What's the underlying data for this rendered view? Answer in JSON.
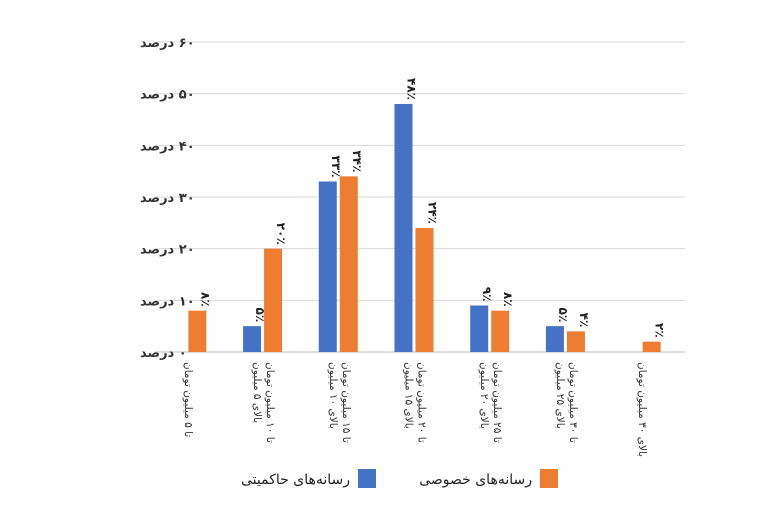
{
  "chart_data": {
    "type": "bar",
    "title": "",
    "xlabel": "",
    "ylabel": "",
    "ylim": [
      0,
      60
    ],
    "grid": true,
    "legend_placement": "bottom",
    "y_ticks": [
      0,
      10,
      20,
      30,
      40,
      50,
      60
    ],
    "y_tick_labels": [
      "۰ درصد",
      "۱۰ درصد",
      "۲۰ درصد",
      "۳۰ درصد",
      "۴۰ درصد",
      "۵۰ درصد",
      "۶۰ درصد"
    ],
    "categories": [
      [
        "تا ۵ میلیون تومان"
      ],
      [
        "بالای ۵ میلیون",
        "تا ۱۰ میلیون تومان"
      ],
      [
        "بالای ۱۰ میلیون",
        "تا ۱۵ میلیون تومان"
      ],
      [
        "بالای ۱۵ میلیون",
        "تا ۲۰ میلیون تومان"
      ],
      [
        "بالای ۲۰ میلیون",
        "تا ۲۵ میلیون تومان"
      ],
      [
        "بالای ۲۵ میلیون",
        "تا ۳۰ میلیون تومان"
      ],
      [
        "بالای ۳۰ میلیون تومان"
      ]
    ],
    "series": [
      {
        "name": "رسانه‌های حاکمیتی",
        "color": "#4472C4",
        "values": [
          null,
          5,
          33,
          48,
          9,
          5,
          null
        ],
        "labels": [
          null,
          "۵٪",
          "۳۳٪",
          "۴۸٪",
          "۹٪",
          "۵٪",
          null
        ]
      },
      {
        "name": "رسانه‌های خصوصی",
        "color": "#ED7D31",
        "values": [
          8,
          20,
          34,
          24,
          8,
          4,
          2
        ],
        "labels": [
          "۸٪",
          "۲۰٪",
          "۳۴٪",
          "۲۴٪",
          "۸٪",
          "۴٪",
          "۲٪"
        ]
      }
    ]
  }
}
